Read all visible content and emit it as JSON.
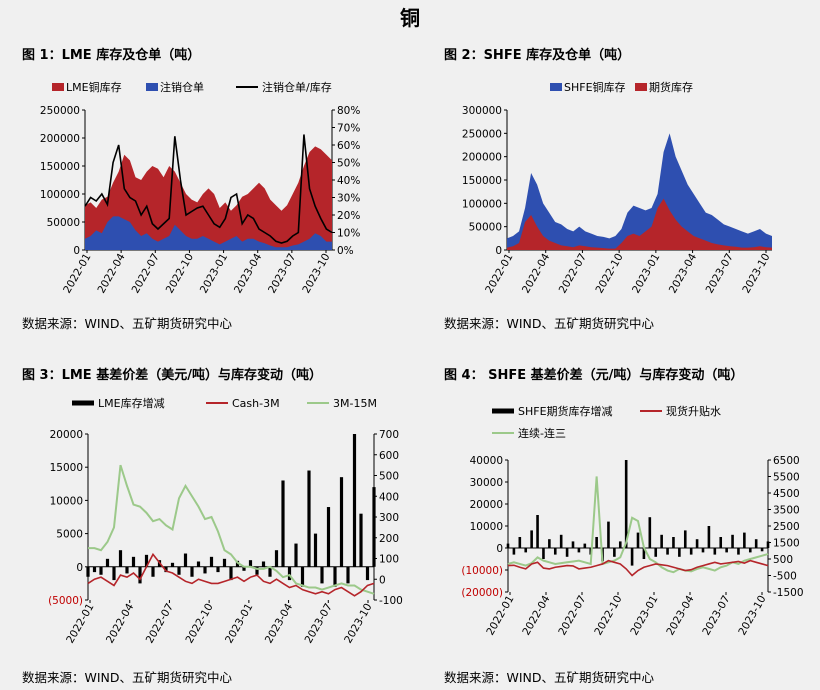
{
  "page_title": "铜",
  "source_text": "数据来源：WIND、五矿期货研究中心",
  "chart_data": [
    {
      "id": "fig1",
      "title": "图 1：LME 库存及仓单（吨）",
      "type": "area",
      "x_ticks": [
        "2022-01",
        "2022-04",
        "2022-07",
        "2022-10",
        "2023-01",
        "2023-04",
        "2023-07",
        "2023-10"
      ],
      "y_left": {
        "ticks": [
          "0",
          "50000",
          "100000",
          "150000",
          "200000",
          "250000"
        ],
        "lim": [
          0,
          250000
        ]
      },
      "y_right": {
        "ticks": [
          "0%",
          "10%",
          "20%",
          "30%",
          "40%",
          "50%",
          "60%",
          "70%",
          "80%"
        ],
        "lim": [
          0,
          80
        ]
      },
      "legend": [
        "LME铜库存",
        "注销仓单",
        "注销仓单/库存"
      ],
      "colors": [
        "#b5252a",
        "#2e4fb0",
        "#000000"
      ],
      "series": [
        {
          "name": "LME铜库存",
          "axis": "left",
          "values": [
            80000,
            85000,
            75000,
            90000,
            95000,
            120000,
            140000,
            170000,
            160000,
            130000,
            125000,
            140000,
            150000,
            145000,
            130000,
            150000,
            140000,
            120000,
            100000,
            90000,
            85000,
            100000,
            110000,
            100000,
            75000,
            85000,
            70000,
            80000,
            95000,
            100000,
            110000,
            120000,
            110000,
            90000,
            80000,
            70000,
            80000,
            100000,
            120000,
            150000,
            175000,
            185000,
            180000,
            170000,
            160000
          ]
        },
        {
          "name": "注销仓单",
          "axis": "left",
          "values": [
            20000,
            25000,
            35000,
            30000,
            50000,
            60000,
            60000,
            55000,
            50000,
            35000,
            25000,
            30000,
            20000,
            15000,
            20000,
            25000,
            45000,
            35000,
            25000,
            20000,
            20000,
            25000,
            20000,
            15000,
            10000,
            15000,
            20000,
            25000,
            15000,
            20000,
            20000,
            15000,
            12000,
            8000,
            5000,
            5000,
            5000,
            8000,
            10000,
            15000,
            20000,
            30000,
            25000,
            15000,
            15000
          ]
        },
        {
          "name": "注销仓单/库存",
          "axis": "right",
          "values": [
            25,
            30,
            28,
            32,
            26,
            50,
            60,
            35,
            30,
            28,
            20,
            25,
            15,
            12,
            15,
            18,
            65,
            40,
            20,
            22,
            24,
            25,
            20,
            15,
            13,
            18,
            30,
            32,
            15,
            20,
            18,
            12,
            10,
            8,
            5,
            4,
            5,
            8,
            10,
            66,
            35,
            25,
            18,
            12,
            10
          ]
        }
      ]
    },
    {
      "id": "fig2",
      "title": "图 2：SHFE 库存及仓单（吨）",
      "type": "area",
      "x_ticks": [
        "2022-01",
        "2022-04",
        "2022-07",
        "2022-10",
        "2023-01",
        "2023-04",
        "2023-07",
        "2023-10"
      ],
      "y_left": {
        "ticks": [
          "0",
          "50000",
          "100000",
          "150000",
          "200000",
          "250000",
          "300000"
        ],
        "lim": [
          0,
          300000
        ]
      },
      "legend": [
        "SHFE铜库存",
        "期货库存"
      ],
      "colors": [
        "#2e4fb0",
        "#b5252a"
      ],
      "series": [
        {
          "name": "SHFE铜库存",
          "values": [
            25000,
            30000,
            40000,
            90000,
            165000,
            140000,
            100000,
            80000,
            60000,
            55000,
            45000,
            40000,
            50000,
            40000,
            35000,
            30000,
            28000,
            25000,
            30000,
            45000,
            80000,
            95000,
            90000,
            85000,
            90000,
            120000,
            210000,
            250000,
            200000,
            170000,
            140000,
            120000,
            100000,
            80000,
            75000,
            65000,
            55000,
            50000,
            45000,
            40000,
            35000,
            40000,
            45000,
            35000,
            30000
          ]
        },
        {
          "name": "期货库存",
          "values": [
            5000,
            8000,
            15000,
            60000,
            75000,
            50000,
            30000,
            20000,
            15000,
            10000,
            8000,
            6000,
            10000,
            8000,
            6000,
            5000,
            4000,
            3000,
            3000,
            15000,
            30000,
            35000,
            30000,
            40000,
            50000,
            90000,
            110000,
            85000,
            65000,
            50000,
            40000,
            30000,
            25000,
            20000,
            15000,
            12000,
            10000,
            8000,
            7000,
            5000,
            5000,
            6000,
            8000,
            6000,
            5000
          ]
        }
      ]
    },
    {
      "id": "fig3",
      "title": "图 3：LME 基差价差（美元/吨）与库存变动（吨）",
      "type": "line",
      "x_ticks": [
        "2022-01",
        "2022-04",
        "2022-07",
        "2022-10",
        "2023-01",
        "2023-04",
        "2023-07",
        "2023-10"
      ],
      "y_left": {
        "ticks": [
          "(5000)",
          "0",
          "5000",
          "10000",
          "15000",
          "20000"
        ],
        "lim": [
          -5000,
          20000
        ]
      },
      "y_right": {
        "ticks": [
          "-100",
          "0",
          "100",
          "200",
          "300",
          "400",
          "500",
          "600",
          "700"
        ],
        "lim": [
          -100,
          700
        ]
      },
      "legend": [
        "LME库存增减",
        "Cash-3M",
        "3M-15M"
      ],
      "colors": [
        "#000000",
        "#b5252a",
        "#9cc98a"
      ],
      "series": [
        {
          "name": "LME库存增减",
          "axis": "left",
          "values": [
            -1500,
            -800,
            -1200,
            1200,
            -2000,
            2500,
            -1000,
            1500,
            -2500,
            1800,
            -1500,
            1000,
            -800,
            600,
            -1200,
            2000,
            -1500,
            800,
            -1000,
            1500,
            -800,
            1200,
            -2000,
            900,
            -600,
            1000,
            -1200,
            800,
            -1500,
            2500,
            13000,
            -2000,
            3500,
            -3000,
            14500,
            5000,
            -2500,
            9000,
            -3000,
            13500,
            -2500,
            20000,
            8000,
            -2000,
            12000
          ]
        },
        {
          "name": "Cash-3M",
          "axis": "right",
          "values": [
            -20,
            0,
            10,
            -10,
            -30,
            20,
            10,
            30,
            0,
            60,
            120,
            80,
            40,
            30,
            10,
            -10,
            -20,
            0,
            -10,
            -20,
            -20,
            -10,
            0,
            10,
            -10,
            10,
            20,
            -10,
            -20,
            0,
            -20,
            -40,
            -30,
            -50,
            -60,
            -70,
            -60,
            -70,
            -50,
            -40,
            -60,
            -80,
            -60,
            -30,
            -20
          ]
        },
        {
          "name": "3M-15M",
          "axis": "right",
          "values": [
            150,
            150,
            140,
            180,
            250,
            550,
            450,
            360,
            350,
            320,
            280,
            290,
            260,
            240,
            390,
            450,
            400,
            350,
            290,
            300,
            230,
            140,
            120,
            80,
            60,
            60,
            50,
            50,
            60,
            40,
            10,
            20,
            -20,
            -30,
            -40,
            -40,
            -50,
            -40,
            -30,
            -20,
            -30,
            -30,
            -50,
            -60,
            -70
          ]
        }
      ]
    },
    {
      "id": "fig4",
      "title": "图 4： SHFE 基差价差（元/吨）与库存变动（吨）",
      "type": "line",
      "x_ticks": [
        "2022-01",
        "2022-04",
        "2022-07",
        "2022-10",
        "2023-01",
        "2023-04",
        "2023-07",
        "2023-10"
      ],
      "y_left": {
        "ticks": [
          "(20000)",
          "(10000)",
          "0",
          "10000",
          "20000",
          "30000",
          "40000"
        ],
        "lim": [
          -20000,
          40000
        ]
      },
      "y_right": {
        "ticks": [
          "-1500",
          "-500",
          "500",
          "1500",
          "2500",
          "3500",
          "4500",
          "5500",
          "6500"
        ],
        "lim": [
          -1500,
          6500
        ]
      },
      "legend": [
        "SHFE期货库存增减",
        "现货升贴水",
        "连续-连三"
      ],
      "colors": [
        "#000000",
        "#b5252a",
        "#9cc98a"
      ],
      "series": [
        {
          "name": "SHFE期货库存增减",
          "axis": "left",
          "values": [
            2000,
            -3000,
            5000,
            -2000,
            8000,
            15000,
            -5000,
            4000,
            -3000,
            6000,
            -4000,
            3000,
            -2000,
            2000,
            -3000,
            5000,
            -6000,
            12000,
            -4000,
            3000,
            40000,
            -8000,
            7000,
            -5000,
            14000,
            -4000,
            6000,
            -3000,
            5000,
            -4000,
            8000,
            -3000,
            4000,
            -2000,
            10000,
            -3000,
            5000,
            -2000,
            6000,
            -3000,
            7000,
            -2000,
            4000,
            -1500,
            3000
          ]
        },
        {
          "name": "现货升贴水",
          "axis": "right",
          "values": [
            100,
            120,
            0,
            -100,
            200,
            300,
            -50,
            -100,
            0,
            50,
            100,
            80,
            -100,
            -50,
            0,
            100,
            200,
            400,
            300,
            200,
            -100,
            -500,
            -200,
            0,
            100,
            200,
            150,
            100,
            0,
            -100,
            -200,
            -150,
            0,
            100,
            200,
            300,
            200,
            250,
            300,
            350,
            250,
            400,
            300,
            200,
            100
          ]
        },
        {
          "name": "连续-连三",
          "axis": "right",
          "values": [
            200,
            300,
            200,
            100,
            250,
            600,
            400,
            300,
            200,
            250,
            300,
            350,
            400,
            300,
            200,
            5500,
            200,
            300,
            400,
            600,
            1500,
            3000,
            2800,
            1200,
            500,
            300,
            0,
            -200,
            -300,
            -100,
            -200,
            -250,
            -100,
            0,
            -100,
            -200,
            0,
            100,
            300,
            200,
            400,
            500,
            600,
            700,
            800
          ]
        }
      ]
    }
  ]
}
